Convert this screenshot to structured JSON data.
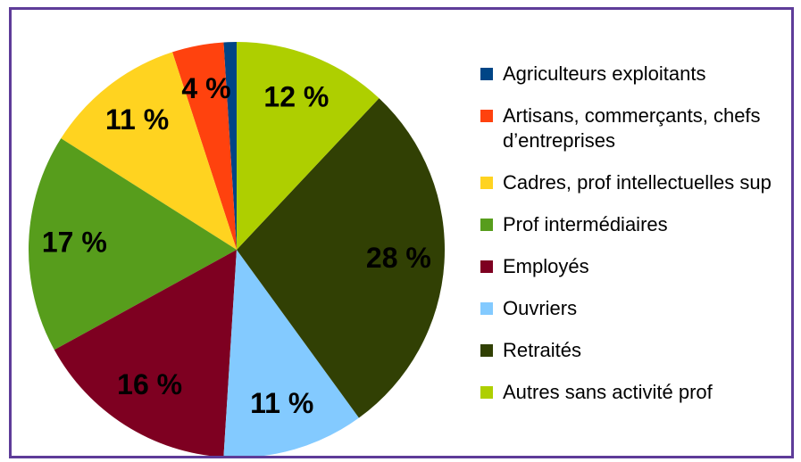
{
  "chart_data": {
    "type": "pie",
    "categories": [
      "Agriculteurs exploitants",
      "Artisans, commerçants, chefs d’entreprises",
      "Cadres, prof intellectuelles sup",
      "Prof intermédiaires",
      "Employés",
      "Ouvriers",
      "Retraités",
      "Autres sans activité prof"
    ],
    "values": [
      1,
      4,
      11,
      17,
      16,
      11,
      28,
      12
    ],
    "value_labels": [
      null,
      "4 %",
      "11 %",
      "17 %",
      "16 %",
      "11 %",
      "28 %",
      "12 %"
    ],
    "colors": [
      "#004586",
      "#ff420e",
      "#ffd320",
      "#579d1c",
      "#7e0021",
      "#83caff",
      "#314004",
      "#aecf00"
    ],
    "legend": "right"
  }
}
